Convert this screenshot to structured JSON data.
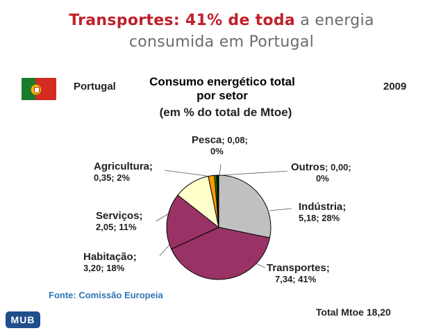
{
  "title": {
    "highlight": "Transportes: 41% de toda",
    "rest_line1": " a energia",
    "line2": "consumida em Portugal"
  },
  "header": {
    "country": "Portugal",
    "year": "2009",
    "flag_icon": "portugal-flag-icon"
  },
  "chart_data": {
    "type": "pie",
    "title": "Consumo energético total por setor",
    "title_line1": "Consumo energético total",
    "title_line2": "por setor",
    "subtitle": "(em % do total de Mtoe)",
    "unit": "Mtoe",
    "slices": [
      {
        "name": "Indústria",
        "value": 5.18,
        "percent": 28,
        "color": "#c0c0c0",
        "label": "Indústria;",
        "detail": "5,18; 28%"
      },
      {
        "name": "Transportes",
        "value": 7.34,
        "percent": 41,
        "color": "#993366",
        "label": "Transportes;",
        "detail": "7,34; 41%"
      },
      {
        "name": "Habitação",
        "value": 3.2,
        "percent": 18,
        "color": "#993366",
        "label": "Habitação;",
        "detail": "3,20; 18%"
      },
      {
        "name": "Serviços",
        "value": 2.05,
        "percent": 11,
        "color": "#ffffcc",
        "label": "Serviços;",
        "detail": "2,05; 11%"
      },
      {
        "name": "Agricultura",
        "value": 0.35,
        "percent": 2,
        "color": "#ff9900",
        "label": "Agricultura;",
        "detail": "0,35; 2%"
      },
      {
        "name": "Pesca",
        "value": 0.08,
        "percent": 0,
        "color": "#00a000",
        "label": "Pesca",
        "detail": "; 0,08; 0%"
      },
      {
        "name": "Outros",
        "value": 0.0,
        "percent": 0,
        "color": "#000000",
        "label": "Outros",
        "detail": "; 0,00; 0%"
      }
    ],
    "total_label": "Total Mtoe",
    "total_value": "18,20"
  },
  "labels": {
    "pesca_a": "Pesca",
    "pesca_b": "; 0,08;",
    "pesca_c": "0%",
    "outros_a": "Outros",
    "outros_b": "; 0,00;",
    "outros_c": "0%",
    "agri_a": "Agricultura;",
    "agri_b": "0,35; 2%",
    "industria_a": "Indústria;",
    "industria_b": "5,18; 28%",
    "servicos_a": "Serviços;",
    "servicos_b": "2,05; 11%",
    "habitacao_a": "Habitação;",
    "habitacao_b": "3,20; 18%",
    "transportes_a": "Transportes;",
    "transportes_b": "7,34; 41%"
  },
  "footer": {
    "source": "Fonte: Comissão Europeia",
    "total": "Total Mtoe  18,20",
    "logo_text": "MUB"
  },
  "colors": {
    "accent": "#c0202a",
    "source": "#2e74b5"
  }
}
